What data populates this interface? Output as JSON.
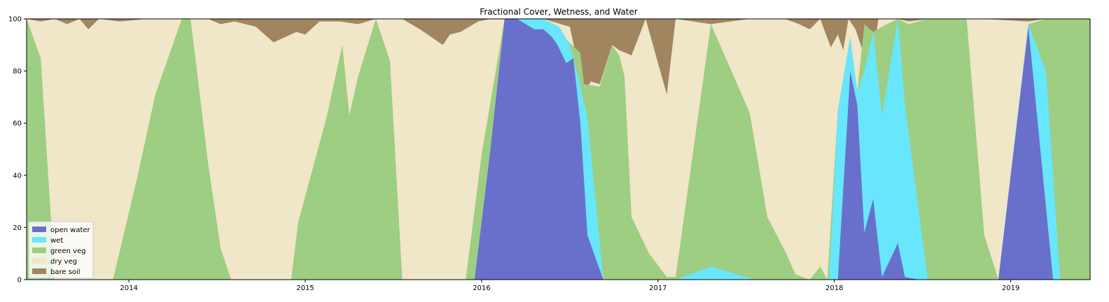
{
  "chart_data": {
    "type": "area",
    "stacked": true,
    "title": "Fractional Cover, Wetness, and Water",
    "xlabel": "",
    "ylabel": "",
    "xlim": [
      2013.42,
      2019.45
    ],
    "ylim": [
      0,
      100
    ],
    "x_ticks": [
      2014,
      2015,
      2016,
      2017,
      2018,
      2019
    ],
    "x_tick_labels": [
      "2014",
      "2015",
      "2016",
      "2017",
      "2018",
      "2019"
    ],
    "y_ticks": [
      0,
      20,
      40,
      60,
      80,
      100
    ],
    "y_tick_labels": [
      "0",
      "20",
      "40",
      "60",
      "80",
      "100"
    ],
    "legend_position": "lower-left",
    "series": [
      {
        "name": "open water",
        "color": "#6870cc"
      },
      {
        "name": "wet",
        "color": "#68e6fc"
      },
      {
        "name": "green veg",
        "color": "#9dce81"
      },
      {
        "name": "dry veg",
        "color": "#f0e6c8"
      },
      {
        "name": "bare soil",
        "color": "#a0855f"
      }
    ],
    "boundaries": {
      "description_units": "cumulative percent (top of each layer) at each x (decimal year)",
      "open_water_top": [
        [
          2013.42,
          0
        ],
        [
          2015.96,
          0
        ],
        [
          2016.05,
          50
        ],
        [
          2016.13,
          100
        ],
        [
          2016.2,
          100
        ],
        [
          2016.3,
          96
        ],
        [
          2016.35,
          96
        ],
        [
          2016.4,
          93
        ],
        [
          2016.43,
          90
        ],
        [
          2016.48,
          83
        ],
        [
          2016.52,
          85
        ],
        [
          2016.56,
          60
        ],
        [
          2016.6,
          17
        ],
        [
          2016.69,
          0
        ],
        [
          2017.97,
          0
        ],
        [
          2018.02,
          0
        ],
        [
          2018.09,
          80
        ],
        [
          2018.13,
          67
        ],
        [
          2018.17,
          18
        ],
        [
          2018.22,
          31
        ],
        [
          2018.27,
          1
        ],
        [
          2018.36,
          14
        ],
        [
          2018.4,
          1
        ],
        [
          2018.48,
          0
        ],
        [
          2018.93,
          0
        ],
        [
          2019.1,
          97
        ],
        [
          2019.24,
          0
        ],
        [
          2019.45,
          0
        ]
      ],
      "wet_top": [
        [
          2013.42,
          0
        ],
        [
          2015.96,
          0
        ],
        [
          2016.05,
          50
        ],
        [
          2016.13,
          100
        ],
        [
          2016.35,
          100
        ],
        [
          2016.44,
          97
        ],
        [
          2016.5,
          90
        ],
        [
          2016.55,
          77
        ],
        [
          2016.6,
          62
        ],
        [
          2016.69,
          0
        ],
        [
          2017.1,
          0
        ],
        [
          2017.3,
          5
        ],
        [
          2017.55,
          0
        ],
        [
          2017.97,
          0
        ],
        [
          2018.02,
          65
        ],
        [
          2018.09,
          93
        ],
        [
          2018.13,
          72
        ],
        [
          2018.17,
          80
        ],
        [
          2018.22,
          95
        ],
        [
          2018.27,
          63
        ],
        [
          2018.36,
          100
        ],
        [
          2018.4,
          67
        ],
        [
          2018.53,
          0
        ],
        [
          2018.93,
          0
        ],
        [
          2019.1,
          98
        ],
        [
          2019.2,
          80
        ],
        [
          2019.28,
          0
        ],
        [
          2019.45,
          0
        ]
      ],
      "green_veg_top": [
        [
          2013.42,
          100
        ],
        [
          2013.5,
          85
        ],
        [
          2013.58,
          0
        ],
        [
          2013.91,
          0
        ],
        [
          2014.05,
          40
        ],
        [
          2014.15,
          71
        ],
        [
          2014.3,
          100
        ],
        [
          2014.35,
          100
        ],
        [
          2014.45,
          44
        ],
        [
          2014.52,
          12
        ],
        [
          2014.58,
          0
        ],
        [
          2014.92,
          0
        ],
        [
          2014.96,
          22
        ],
        [
          2015.12,
          62
        ],
        [
          2015.21,
          90
        ],
        [
          2015.25,
          63
        ],
        [
          2015.3,
          78
        ],
        [
          2015.4,
          100
        ],
        [
          2015.48,
          84
        ],
        [
          2015.55,
          0
        ],
        [
          2015.91,
          0
        ],
        [
          2016.0,
          48
        ],
        [
          2016.13,
          100
        ],
        [
          2016.35,
          100
        ],
        [
          2016.56,
          87
        ],
        [
          2016.58,
          75
        ],
        [
          2016.67,
          74
        ],
        [
          2016.74,
          90
        ],
        [
          2016.78,
          86
        ],
        [
          2016.81,
          78
        ],
        [
          2016.85,
          24
        ],
        [
          2016.95,
          10
        ],
        [
          2017.05,
          1
        ],
        [
          2017.1,
          1
        ],
        [
          2017.3,
          98
        ],
        [
          2017.52,
          64
        ],
        [
          2017.62,
          24
        ],
        [
          2017.72,
          11
        ],
        [
          2017.78,
          2
        ],
        [
          2017.86,
          0
        ],
        [
          2017.92,
          5
        ],
        [
          2017.96,
          0
        ],
        [
          2018.02,
          65
        ],
        [
          2018.09,
          93
        ],
        [
          2018.13,
          72
        ],
        [
          2018.17,
          98
        ],
        [
          2018.22,
          95
        ],
        [
          2018.27,
          97
        ],
        [
          2018.36,
          100
        ],
        [
          2018.42,
          98
        ],
        [
          2018.53,
          100
        ],
        [
          2018.75,
          100
        ],
        [
          2018.85,
          17
        ],
        [
          2018.93,
          0
        ],
        [
          2019.1,
          98
        ],
        [
          2019.2,
          100
        ],
        [
          2019.45,
          100
        ]
      ],
      "dry_veg_top": [
        [
          2013.42,
          100
        ],
        [
          2013.5,
          99
        ],
        [
          2013.58,
          100
        ],
        [
          2013.65,
          98
        ],
        [
          2013.72,
          100
        ],
        [
          2013.77,
          96
        ],
        [
          2013.83,
          100
        ],
        [
          2013.95,
          99
        ],
        [
          2014.1,
          100
        ],
        [
          2014.35,
          100
        ],
        [
          2014.45,
          100
        ],
        [
          2014.52,
          98
        ],
        [
          2014.6,
          99
        ],
        [
          2014.72,
          97
        ],
        [
          2014.82,
          91
        ],
        [
          2014.95,
          95
        ],
        [
          2015.0,
          94
        ],
        [
          2015.08,
          99
        ],
        [
          2015.2,
          99
        ],
        [
          2015.3,
          98
        ],
        [
          2015.4,
          100
        ],
        [
          2015.55,
          100
        ],
        [
          2015.65,
          96
        ],
        [
          2015.78,
          90
        ],
        [
          2015.82,
          94
        ],
        [
          2015.88,
          95
        ],
        [
          2015.98,
          99
        ],
        [
          2016.05,
          100
        ],
        [
          2016.35,
          100
        ],
        [
          2016.5,
          97
        ],
        [
          2016.58,
          72
        ],
        [
          2016.62,
          76
        ],
        [
          2016.67,
          75
        ],
        [
          2016.74,
          90
        ],
        [
          2016.78,
          88
        ],
        [
          2016.85,
          86
        ],
        [
          2016.93,
          100
        ],
        [
          2017.05,
          71
        ],
        [
          2017.1,
          100
        ],
        [
          2017.3,
          98
        ],
        [
          2017.52,
          100
        ],
        [
          2017.72,
          100
        ],
        [
          2017.8,
          98
        ],
        [
          2017.86,
          96
        ],
        [
          2017.92,
          100
        ],
        [
          2017.98,
          89
        ],
        [
          2018.02,
          94
        ],
        [
          2018.05,
          88
        ],
        [
          2018.08,
          100
        ],
        [
          2018.12,
          96
        ],
        [
          2018.15,
          90
        ],
        [
          2018.2,
          78
        ],
        [
          2018.25,
          100
        ],
        [
          2018.36,
          100
        ],
        [
          2018.42,
          99
        ],
        [
          2018.53,
          100
        ],
        [
          2018.85,
          100
        ],
        [
          2019.1,
          99
        ],
        [
          2019.2,
          100
        ],
        [
          2019.3,
          99
        ],
        [
          2019.45,
          100
        ]
      ],
      "bare_soil_top": [
        [
          2013.42,
          100
        ],
        [
          2019.45,
          100
        ]
      ]
    }
  }
}
